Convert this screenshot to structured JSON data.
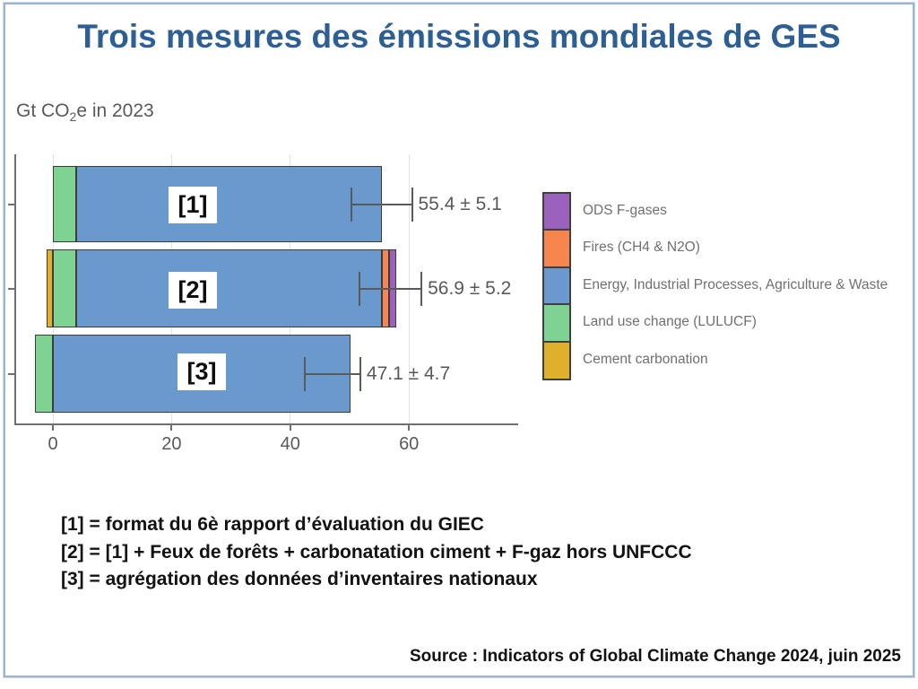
{
  "title": "Trois mesures des émissions mondiales de GES",
  "subtitle": {
    "pre": "Gt CO",
    "sub": "2",
    "post": "e in 2023"
  },
  "footnotes": [
    "[1] = format du 6è rapport d’évaluation du GIEC",
    "[2] = [1] + Feux de forêts + carbonatation ciment + F-gaz hors UNFCCC",
    "[3] = agrégation des données d’inventaires nationaux"
  ],
  "source": "Source : Indicators of Global Climate Change 2024, juin 2025",
  "colors": {
    "title_blue": "#2d5f95",
    "energy_blue": "#6a99ce",
    "lulucf_green": "#7fd392",
    "cement_yellow": "#dfb02c",
    "fires_orange": "#f6864e",
    "ods_purple": "#9a61bd",
    "frame_blue": "#9ab4d6",
    "axis_gray": "#6f6f6f",
    "text_gray": "#595959"
  },
  "legend": {
    "items": [
      {
        "label": "ODS F-gases",
        "color": "#9a61bd"
      },
      {
        "label": "Fires (CH4 & N2O)",
        "color": "#f6864e"
      },
      {
        "label": "Energy, Industrial Processes, Agriculture & Waste",
        "color": "#6a99ce"
      },
      {
        "label": "Land use change (LULUCF)",
        "color": "#7fd392"
      },
      {
        "label": "Cement carbonation",
        "color": "#dfb02c"
      }
    ]
  },
  "chart_data": {
    "type": "bar",
    "orientation": "horizontal",
    "title": "Trois mesures des émissions mondiales de GES",
    "xlabel": "Gt CO2e in 2023",
    "ylabel": "",
    "x_ticks": [
      0,
      20,
      40,
      60
    ],
    "xlim": [
      -5,
      78
    ],
    "grid": true,
    "legend_position": "right",
    "categories": [
      "[1]",
      "[2]",
      "[3]"
    ],
    "bars": [
      {
        "label": "[1]",
        "total": 55.4,
        "uncertainty": 5.1,
        "annotation": "55.4 ± 5.1",
        "segments": [
          {
            "name": "Land use change (LULUCF)",
            "value": 3.9,
            "color": "#7fd392"
          },
          {
            "name": "Energy, Industrial Processes, Agriculture & Waste",
            "value": 51.5,
            "color": "#6a99ce"
          }
        ]
      },
      {
        "label": "[2]",
        "total": 56.9,
        "uncertainty": 5.2,
        "annotation": "56.9 ± 5.2",
        "segments": [
          {
            "name": "Cement carbonation",
            "value": -1.0,
            "color": "#dfb02c"
          },
          {
            "name": "Land use change (LULUCF)",
            "value": 3.9,
            "color": "#7fd392"
          },
          {
            "name": "Energy, Industrial Processes, Agriculture & Waste",
            "value": 51.5,
            "color": "#6a99ce"
          },
          {
            "name": "Fires (CH4 & N2O)",
            "value": 1.2,
            "color": "#f6864e"
          },
          {
            "name": "ODS F-gases",
            "value": 1.3,
            "color": "#9a61bd"
          }
        ]
      },
      {
        "label": "[3]",
        "total": 47.1,
        "uncertainty": 4.7,
        "annotation": "47.1 ± 4.7",
        "segments": [
          {
            "name": "Land use change (LULUCF)",
            "value": -3.0,
            "color": "#7fd392"
          },
          {
            "name": "Energy, Industrial Processes, Agriculture & Waste",
            "value": 50.1,
            "color": "#6a99ce"
          }
        ]
      }
    ]
  }
}
